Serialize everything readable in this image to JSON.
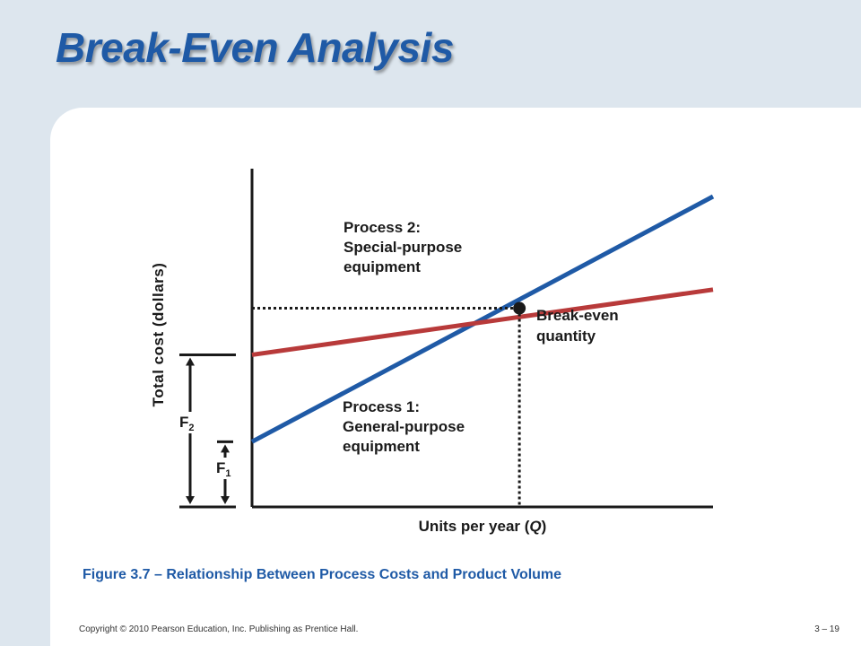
{
  "slide": {
    "title": "Break-Even Analysis",
    "caption": "Figure 3.7 – Relationship Between Process Costs and Product Volume",
    "copyright": "Copyright © 2010 Pearson Education, Inc. Publishing as Prentice Hall.",
    "slide_number": "3 – 19"
  },
  "colors": {
    "title": "#1f5aa6",
    "process1_line": "#1f5aa6",
    "process2_line": "#b83a3a",
    "background": "#dde6ee"
  },
  "chart_data": {
    "type": "line",
    "title": "",
    "xlabel_main": "Units per year (",
    "xlabel_var": "Q",
    "xlabel_end": ")",
    "ylabel": "Total cost (dollars)",
    "x_range": [
      0,
      1
    ],
    "y_range": [
      0,
      1
    ],
    "grid": false,
    "tick_labels": false,
    "series": [
      {
        "name_lines": [
          "Process 1:",
          "General-purpose",
          "equipment"
        ],
        "color": "#1f5aa6",
        "x": [
          0,
          1
        ],
        "y": [
          0.21,
          1.0
        ]
      },
      {
        "name_lines": [
          "Process 2:",
          "Special-purpose",
          "equipment"
        ],
        "color": "#b83a3a",
        "x": [
          0,
          1
        ],
        "y": [
          0.49,
          0.7
        ]
      }
    ],
    "fixed_costs": [
      {
        "label": "F",
        "sub": "1",
        "value": 0.21
      },
      {
        "label": "F",
        "sub": "2",
        "value": 0.49
      }
    ],
    "break_even": {
      "label_lines": [
        "Break-even",
        "quantity"
      ],
      "x": 0.58,
      "y": 0.64
    }
  }
}
